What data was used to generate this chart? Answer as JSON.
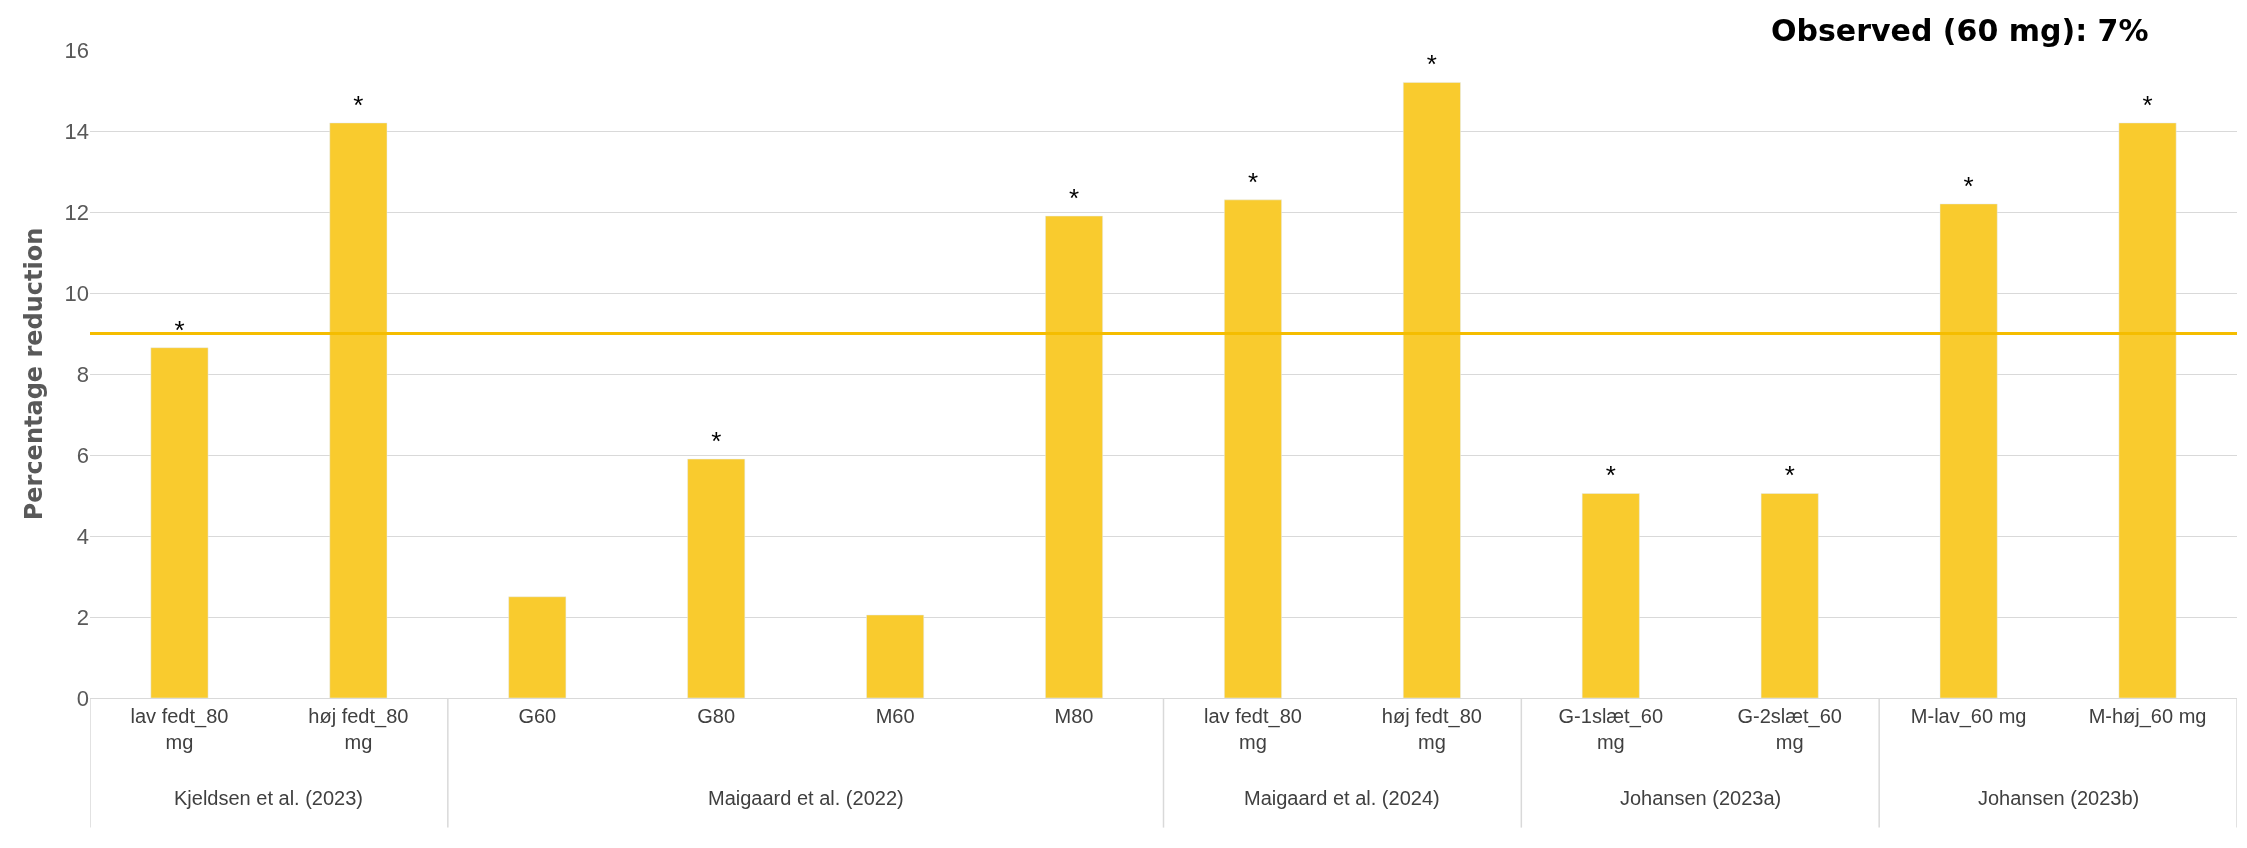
{
  "chart_data": {
    "type": "bar",
    "ylabel": "Percentage reduction",
    "categories": [
      "lav fedt_80 mg",
      "høj fedt_80 mg",
      "G60",
      "G80",
      "M60",
      "M80",
      "lav fedt_80 mg",
      "høj fedt_80 mg",
      "G-1slæt_60 mg",
      "G-2slæt_60 mg",
      "M-lav_60 mg",
      "M-høj_60 mg"
    ],
    "values": [
      8.65,
      14.2,
      2.5,
      5.9,
      2.05,
      11.9,
      12.3,
      15.2,
      5.05,
      5.05,
      12.2,
      14.2
    ],
    "value_labels": [
      "*",
      "*",
      null,
      "*",
      null,
      "*",
      "*",
      "*",
      "*",
      "*",
      "*",
      "*"
    ],
    "color": "#f9cb2e",
    "ylim": [
      0,
      16
    ],
    "yticks": [
      0,
      2,
      4,
      6,
      8,
      10,
      12,
      14,
      16
    ],
    "grid": "y",
    "ref_lines": [
      {
        "axis": "y",
        "value": 9,
        "color": "#f5bd00"
      }
    ],
    "annotations": [
      "Observed (60 mg): 7%",
      "Kjeldsen et al. (2023)",
      "Maigaard et al. (2022)",
      "Maigaard et al. (2024)",
      "Johansen (2023a)",
      "Johansen (2023b)"
    ]
  }
}
